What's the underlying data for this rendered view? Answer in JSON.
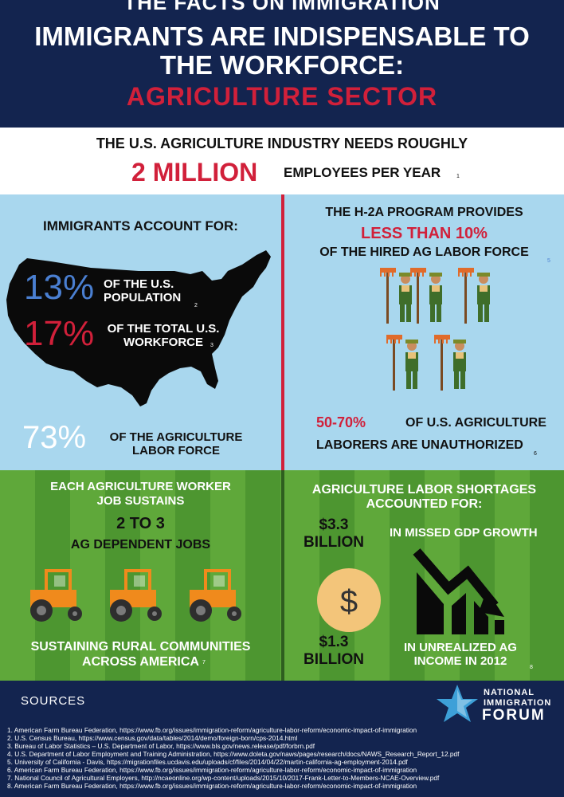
{
  "header": {
    "cut_line": "THE FACTS ON IMMIGRATION",
    "title_line1": "IMMIGRANTS ARE INDISPENSABLE TO",
    "title_line2": "THE WORKFORCE:",
    "sector": "AGRICULTURE  SECTOR"
  },
  "need": {
    "line1": "THE U.S.  AGRICULTURE INDUSTRY NEEDS  ROUGHLY",
    "big": "2 MILLION",
    "line2": "EMPLOYEES PER YEAR",
    "ref": "1"
  },
  "immigrants": {
    "title": "IMMIGRANTS ACCOUNT FOR:",
    "stat1_value": "13%",
    "stat1_label_a": "OF THE U.S.",
    "stat1_label_b": "POPULATION",
    "stat1_ref": "2",
    "stat2_value": "17%",
    "stat2_label_a": "OF THE TOTAL U.S.",
    "stat2_label_b": "WORKFORCE",
    "stat2_ref": "3",
    "stat3_value": "73%",
    "stat3_label_a": "OF THE AGRICULTURE",
    "stat3_label_b": "LABOR FORCE",
    "colors": {
      "blue_stat": "#4a7fd1",
      "red_stat": "#d1203a"
    }
  },
  "h2a": {
    "line1": "THE H-2A PROGRAM PROVIDES",
    "line2": "LESS THAN 10%",
    "line3": "OF THE HIRED AG LABOR FORCE",
    "ref": "5",
    "stat_value": "50-70%",
    "stat_label_a": "OF U.S. AGRICULTURE",
    "stat_label_b": "LABORERS ARE UNAUTHORIZED",
    "stat_ref": "6"
  },
  "jobs": {
    "line1": "EACH AGRICULTURE WORKER",
    "line2": "JOB SUSTAINS",
    "value": "2 TO 3",
    "value_label": "AG DEPENDENT JOBS",
    "rural_line1": "SUSTAINING RURAL COMMUNITIES",
    "rural_line2": "ACROSS AMERICA",
    "ref": "7"
  },
  "shortages": {
    "title_line1": "AGRICULTURE LABOR SHORTAGES",
    "title_line2": "ACCOUNTED FOR:",
    "amount1_a": "$3.3",
    "amount1_b": "BILLION",
    "amount1_label": "IN MISSED GDP GROWTH",
    "amount2_a": "$1.3",
    "amount2_b": "BILLION",
    "amount2_label_a": "IN UNREALIZED AG",
    "amount2_label_b": "INCOME IN 2012",
    "ref": "8",
    "coin_symbol": "$"
  },
  "sources": {
    "title": "SOURCES",
    "logo_line1": "NATIONAL",
    "logo_line2": "IMMIGRATION",
    "logo_line3": "FORUM",
    "items": [
      "1. American Farm Bureau Federation, https://www.fb.org/issues/immigration-reform/agriculture-labor-reform/economic-impact-of-immigration",
      "2. U.S. Census Bureau, https://www.census.gov/data/tables/2014/demo/foreign-born/cps-2014.html",
      "3. Bureau of Labor Statistics – U.S. Department of Labor, https://www.bls.gov/news.release/pdf/forbrn.pdf",
      "4. U.S. Department of Labor Employment and Training Administration, https://www.doleta.gov/naws/pages/research/docs/NAWS_Research_Report_12.pdf",
      "5. University of California  - Davis, https://migrationfiles.ucdavis.edu/uploads/cf/files/2014/04/22/martin-california-ag-employment-2014.pdf",
      "6. American Farm Bureau Federation, https://www.fb.org/issues/immigration-reform/agriculture-labor-reform/economic-impact-of-immigration",
      "7. National Council of Agricultural Employers, http://ncaeonline.org/wp-content/uploads/2015/10/2017-Frank-Letter-to-Members-NCAE-Overview.pdf",
      "8. American Farm Bureau Federation, https://www.fb.org/issues/immigration-reform/agriculture-labor-reform/economic-impact-of-immigration"
    ]
  },
  "icons": {
    "map": "usa-map-icon",
    "worker": "farm-worker-icon",
    "tractor": "tractor-icon",
    "coin": "dollar-coin-icon",
    "arrow": "downward-trend-arrow-icon",
    "logo": "star-logo-icon"
  }
}
